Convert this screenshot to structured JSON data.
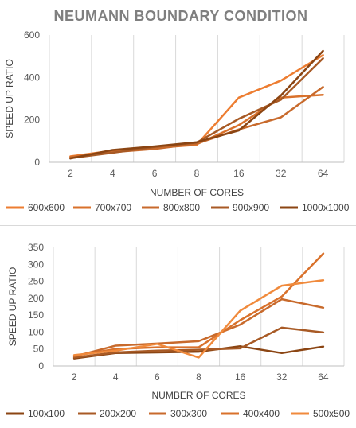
{
  "chart_data": [
    {
      "type": "line",
      "title": "NEUMANN BOUNDARY CONDITION",
      "xlabel": "NUMBER OF CORES",
      "ylabel": "SPEED UP RATIO",
      "categories": [
        "2",
        "4",
        "6",
        "8",
        "16",
        "32",
        "64"
      ],
      "ylim": [
        0,
        600
      ],
      "yticks": [
        0,
        200,
        400,
        600
      ],
      "grid": "vertical",
      "legend": "bottom",
      "series": [
        {
          "name": "600x600",
          "color": "#ED7D31",
          "values": [
            28,
            55,
            68,
            82,
            305,
            385,
            505
          ]
        },
        {
          "name": "700x700",
          "color": "#D9712B",
          "values": [
            25,
            52,
            66,
            85,
            175,
            305,
            318
          ]
        },
        {
          "name": "800x800",
          "color": "#C86A2C",
          "values": [
            22,
            48,
            63,
            88,
            155,
            212,
            355
          ]
        },
        {
          "name": "900x900",
          "color": "#A85A25",
          "values": [
            20,
            45,
            72,
            93,
            205,
            295,
            490
          ]
        },
        {
          "name": "1000x1000",
          "color": "#8B4513",
          "values": [
            18,
            58,
            75,
            95,
            150,
            315,
            525
          ]
        }
      ]
    },
    {
      "type": "line",
      "title": "",
      "xlabel": "NUMBER OF CORES",
      "ylabel": "SPEED UP RATIO",
      "categories": [
        "2",
        "4",
        "6",
        "8",
        "16",
        "32",
        "64"
      ],
      "ylim": [
        0,
        350
      ],
      "yticks": [
        0,
        50,
        100,
        150,
        200,
        250,
        300,
        350
      ],
      "grid": "vertical",
      "legend": "bottom",
      "series": [
        {
          "name": "100x100",
          "color": "#8B4513",
          "values": [
            22,
            38,
            40,
            42,
            58,
            38,
            57
          ]
        },
        {
          "name": "200x200",
          "color": "#A85A25",
          "values": [
            25,
            40,
            45,
            48,
            52,
            113,
            99
          ]
        },
        {
          "name": "300x300",
          "color": "#C86A2C",
          "values": [
            28,
            60,
            66,
            73,
            122,
            197,
            172
          ]
        },
        {
          "name": "400x400",
          "color": "#D9712B",
          "values": [
            30,
            50,
            55,
            55,
            135,
            205,
            332
          ]
        },
        {
          "name": "500x500",
          "color": "#F08A3C",
          "values": [
            32,
            45,
            65,
            25,
            163,
            237,
            253
          ]
        }
      ]
    }
  ]
}
